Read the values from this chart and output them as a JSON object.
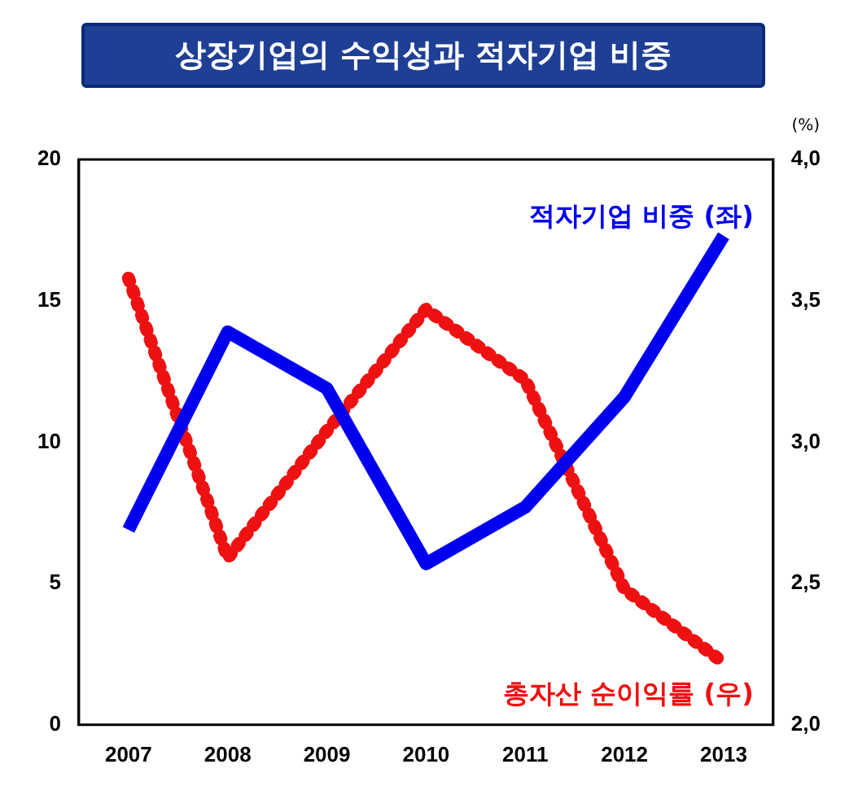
{
  "chart_data": {
    "type": "line",
    "title": "상장기업의 수익성과 적자기업 비중",
    "y2label": "(%)",
    "categories": [
      "2007",
      "2008",
      "2009",
      "2010",
      "2011",
      "2012",
      "2013"
    ],
    "series": [
      {
        "name": "적자기업 비중 (좌)",
        "color": "#0000ee",
        "values": [
          6.9,
          13.9,
          11.9,
          5.7,
          7.7,
          11.6,
          17.3
        ],
        "line_style": "solid"
      },
      {
        "name": "총자산 순이익률 (우)",
        "color": "#ee1111",
        "values": [
          3.58,
          2.59,
          3.04,
          3.47,
          3.22,
          2.48,
          2.22
        ],
        "axis": "y2",
        "line_style": "dotted"
      }
    ],
    "ylim": [
      0,
      20
    ],
    "yticks": [
      0,
      5,
      10,
      15,
      20
    ],
    "y2lim": [
      2,
      4
    ],
    "y2ticks": [
      {
        "value": 2,
        "label": "2,0"
      },
      {
        "value": 2.5,
        "label": "2,5"
      },
      {
        "value": 3,
        "label": "3,0"
      },
      {
        "value": 3.5,
        "label": "3,5"
      },
      {
        "value": 4,
        "label": "4,0"
      }
    ],
    "grid": false,
    "legend": false,
    "marker": "none"
  }
}
